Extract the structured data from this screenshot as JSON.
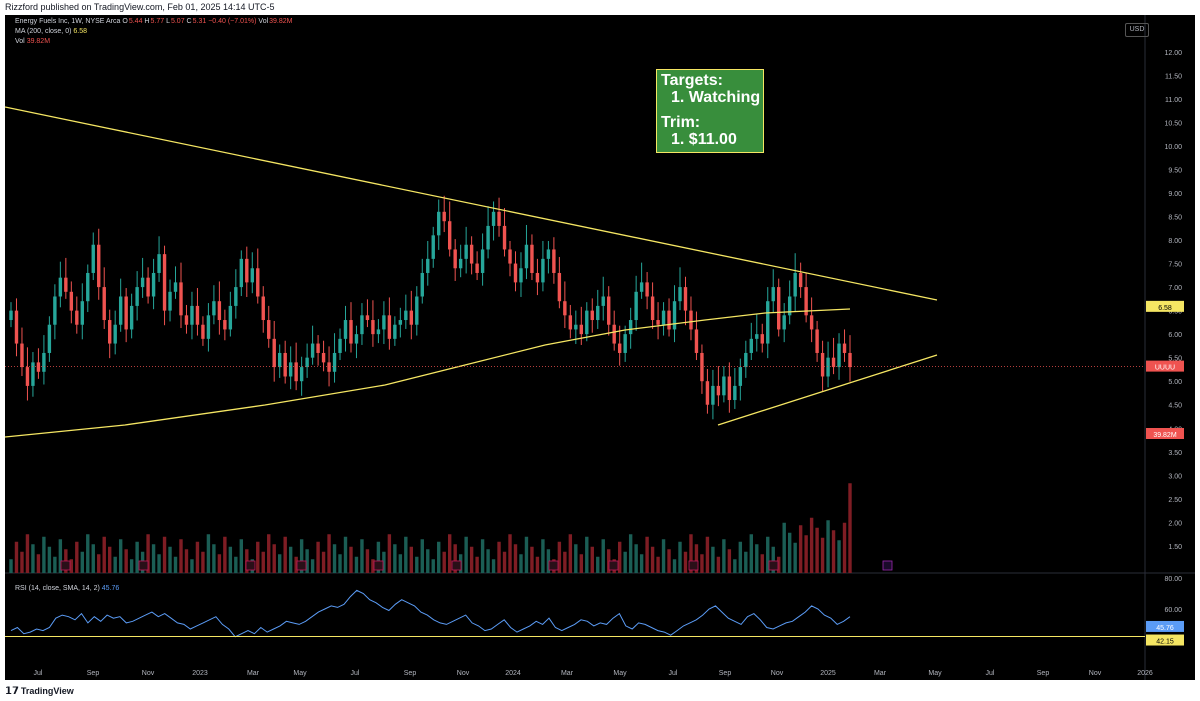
{
  "header": {
    "publisher": "Rizzford published on TradingView.com, Feb 01, 2025 14:14 UTC-5"
  },
  "legend": {
    "symbol": "Energy Fuels Inc, 1W, NYSE Arca",
    "o_label": "O",
    "o": "5.44",
    "h_label": "H",
    "h": "5.77",
    "l_label": "L",
    "l": "5.07",
    "c_label": "C",
    "c": "5.31",
    "change": "−0.40 (−7.01%)",
    "vol_label": "Vol",
    "vol": "39.82M",
    "ma_label": "MA (200, close, 0)",
    "ma_value": "6.58",
    "vol2_label": "Vol",
    "vol2": "39.82M",
    "rsi_label": "RSI (14, close, SMA, 14, 2)",
    "rsi_value": "45.76"
  },
  "currency": "USD",
  "annotation": {
    "line1": "Targets:",
    "line2": "1.  Watching",
    "line3": "Trim:",
    "line4": "1.  $11.00"
  },
  "badges": {
    "ma": "6.58",
    "price": "UUUU",
    "volume": "39.82M",
    "rsi": "45.76",
    "rsi_ma": "42.15"
  },
  "footer": {
    "brand": "TradingView"
  },
  "colors": {
    "up": "#26a69a",
    "down": "#ef5350",
    "vol_up": "#1b5e55",
    "vol_down": "#7f1d24",
    "trend": "#f5e663",
    "rsi": "#5b9cf6",
    "bg": "#000000",
    "earnings": "#c2185b"
  },
  "chart_data": {
    "type": "candlestick",
    "price_axis": {
      "min": 1.2,
      "max": 12.4,
      "ticks": [
        "12.00",
        "11.50",
        "11.00",
        "10.50",
        "10.00",
        "9.50",
        "9.00",
        "8.50",
        "8.00",
        "7.50",
        "7.00",
        "6.50",
        "6.00",
        "5.50",
        "5.00",
        "4.50",
        "4.00",
        "3.50",
        "3.00",
        "2.50",
        "2.00",
        "1.50"
      ]
    },
    "rsi_axis": {
      "min": 25,
      "max": 82,
      "ticks": [
        "80.00",
        "60.00",
        "40.00"
      ]
    },
    "x_labels": [
      "Jul",
      "Sep",
      "Nov",
      "2023",
      "Mar",
      "May",
      "Jul",
      "Sep",
      "Nov",
      "2024",
      "Mar",
      "May",
      "Jul",
      "Sep",
      "Nov",
      "2025",
      "Mar",
      "May",
      "Jul",
      "Sep",
      "Nov",
      "2026"
    ],
    "closes": [
      6.5,
      5.8,
      5.3,
      4.9,
      5.4,
      5.2,
      5.6,
      6.2,
      6.8,
      7.2,
      6.9,
      6.5,
      6.2,
      6.7,
      7.3,
      7.9,
      7.0,
      6.3,
      5.8,
      6.2,
      6.8,
      6.1,
      6.6,
      7.0,
      7.2,
      6.8,
      7.3,
      7.7,
      6.5,
      6.9,
      7.1,
      6.4,
      6.2,
      6.6,
      6.2,
      5.9,
      6.4,
      6.7,
      6.3,
      6.1,
      6.6,
      7.0,
      7.6,
      7.1,
      7.4,
      6.8,
      6.3,
      5.9,
      5.3,
      5.6,
      5.1,
      5.4,
      5.0,
      5.3,
      5.5,
      5.8,
      5.6,
      5.4,
      5.2,
      5.6,
      5.9,
      6.3,
      5.8,
      6.0,
      6.4,
      6.3,
      6.0,
      6.1,
      6.4,
      5.9,
      6.2,
      6.3,
      6.5,
      6.2,
      6.8,
      7.3,
      7.6,
      8.1,
      8.6,
      8.4,
      7.8,
      7.4,
      7.6,
      7.9,
      7.5,
      7.3,
      7.8,
      8.3,
      8.6,
      8.3,
      7.8,
      7.5,
      7.1,
      7.4,
      7.9,
      7.3,
      7.1,
      7.6,
      7.8,
      7.3,
      6.7,
      6.4,
      6.1,
      6.2,
      6.0,
      6.5,
      6.3,
      6.6,
      6.8,
      6.2,
      5.8,
      5.6,
      6.0,
      6.3,
      6.9,
      7.1,
      6.8,
      6.3,
      6.2,
      6.5,
      6.1,
      6.7,
      7.0,
      6.5,
      6.1,
      5.6,
      5.0,
      4.5,
      4.9,
      4.7,
      5.1,
      4.6,
      4.9,
      5.3,
      5.6,
      5.9,
      6.0,
      5.8,
      6.7,
      7.0,
      6.1,
      6.4,
      6.8,
      7.3,
      7.0,
      6.4,
      6.1,
      5.6,
      5.1,
      5.5,
      5.3,
      5.8,
      5.6,
      5.3
    ],
    "volume_axis_scale": "relative",
    "rsi": [
      46,
      48,
      44,
      45,
      47,
      46,
      48,
      54,
      56,
      55,
      53,
      57,
      51,
      55,
      52,
      56,
      54,
      55,
      51,
      52,
      54,
      56,
      58,
      55,
      57,
      54,
      51,
      50,
      47,
      49,
      51,
      53,
      55,
      50,
      47,
      42,
      44,
      46,
      44,
      48,
      45,
      47,
      49,
      52,
      51,
      50,
      52,
      55,
      58,
      60,
      62,
      61,
      63,
      68,
      72,
      70,
      66,
      64,
      61,
      59,
      63,
      66,
      64,
      62,
      58,
      56,
      53,
      51,
      50,
      52,
      54,
      56,
      51,
      49,
      46,
      47,
      50,
      53,
      48,
      45,
      47,
      49,
      52,
      50,
      54,
      48,
      46,
      48,
      50,
      53,
      52,
      49,
      51,
      50,
      54,
      57,
      49,
      47,
      51,
      50,
      48,
      46,
      45,
      43,
      46,
      49,
      51,
      53,
      56,
      60,
      62,
      58,
      54,
      52,
      50,
      55,
      57,
      53,
      48,
      47,
      49,
      51,
      52,
      55,
      58,
      62,
      60,
      56,
      54,
      50,
      52,
      55
    ],
    "rsi_ma_level": 42.15,
    "ma200": {
      "value": 6.58
    }
  }
}
